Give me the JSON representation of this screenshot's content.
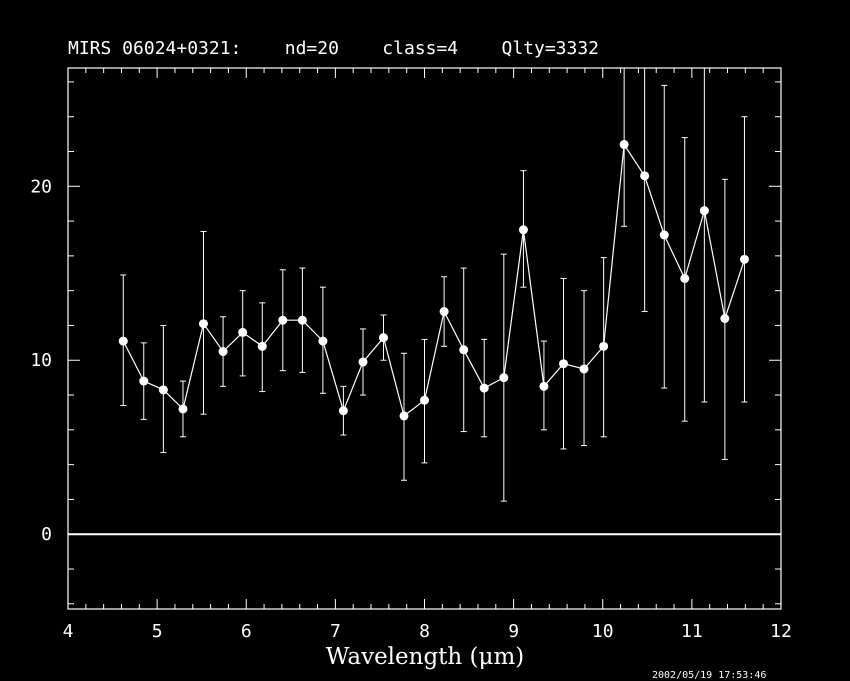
{
  "header": {
    "title": "MIRS 06024+0321:    nd=20    class=4    Qlty=3332"
  },
  "footer": {
    "timestamp": "2002/05/19 17:53:46"
  },
  "chart_data": {
    "type": "scatter",
    "title": "MIRS 06024+0321:    nd=20    class=4    Qlty=3332",
    "xlabel": "Wavelength (μm)",
    "ylabel": "",
    "xlim": [
      4,
      12
    ],
    "ylim": [
      -4.3,
      26.8
    ],
    "xticks": [
      4,
      5,
      6,
      7,
      8,
      9,
      10,
      11,
      12
    ],
    "yticks": [
      0,
      10,
      20
    ],
    "zero_line": 0,
    "grid": false,
    "connected": true,
    "colors": {
      "background": "#000000",
      "foreground": "#ffffff"
    },
    "series": [
      {
        "x": [
          4.62,
          4.85,
          5.07,
          5.29,
          5.52,
          5.74,
          5.96,
          6.18,
          6.41,
          6.63,
          6.86,
          7.09,
          7.31,
          7.54,
          7.77,
          8.0,
          8.22,
          8.44,
          8.67,
          8.89,
          9.11,
          9.34,
          9.56,
          9.79,
          10.01,
          10.24,
          10.47,
          10.69,
          10.92,
          11.14,
          11.37,
          11.59
        ],
        "y": [
          11.1,
          8.8,
          8.3,
          7.2,
          12.1,
          10.5,
          11.6,
          10.8,
          12.3,
          12.3,
          11.1,
          7.1,
          9.9,
          11.3,
          6.8,
          7.7,
          12.8,
          10.6,
          8.4,
          9.0,
          17.5,
          8.5,
          9.8,
          9.5,
          10.8,
          22.4,
          20.6,
          17.2,
          14.7,
          18.6,
          12.4,
          15.8
        ],
        "err_high": [
          14.9,
          11.0,
          12.0,
          8.8,
          17.4,
          12.5,
          14.0,
          13.3,
          15.2,
          15.3,
          14.2,
          8.5,
          11.8,
          12.6,
          10.4,
          11.2,
          14.8,
          15.3,
          11.2,
          16.1,
          20.9,
          11.1,
          14.7,
          14.0,
          15.9,
          26.8,
          26.8,
          25.8,
          22.8,
          26.8,
          20.4,
          24.0
        ],
        "err_low": [
          7.4,
          6.6,
          4.7,
          5.6,
          6.9,
          8.5,
          9.1,
          8.2,
          9.4,
          9.3,
          8.1,
          5.7,
          8.0,
          10.0,
          3.1,
          4.1,
          10.8,
          5.9,
          5.6,
          1.9,
          14.2,
          6.0,
          4.9,
          5.1,
          5.6,
          17.7,
          12.8,
          8.4,
          6.5,
          7.6,
          4.3,
          7.6
        ]
      }
    ]
  }
}
